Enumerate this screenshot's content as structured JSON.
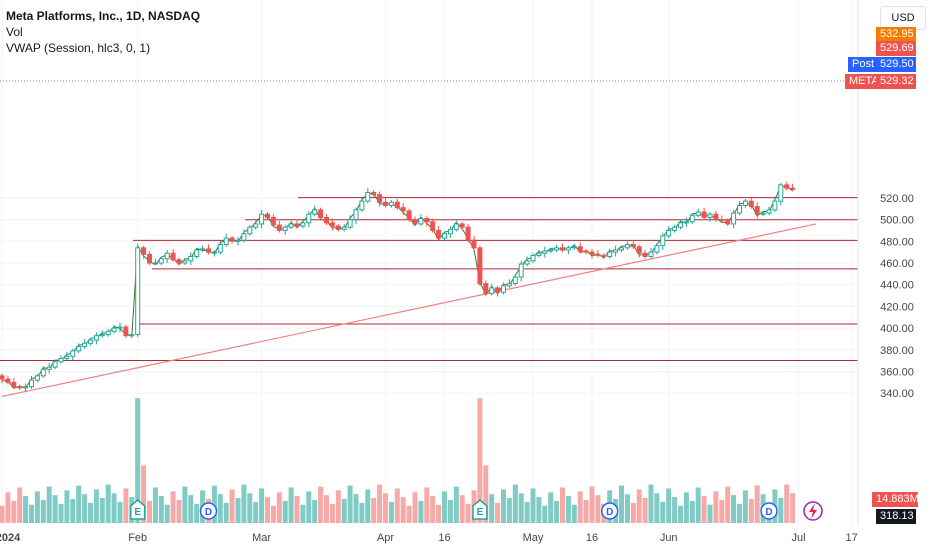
{
  "legend": {
    "title": "Meta Platforms, Inc., 1D, NASDAQ",
    "vol": "Vol",
    "vwap": "VWAP (Session, hlc3, 0, 1)"
  },
  "currency": "USD",
  "colors": {
    "up": "#26a69a",
    "down": "#ef5350",
    "level": "#b22833",
    "trend": "#f08080",
    "vol_up": "#80cbc4",
    "vol_down": "#f7a9a7",
    "vwap": "#ff9800"
  },
  "price_tags": {
    "top_partial": "532.95",
    "high": "529.69",
    "post_label": "Post",
    "post": "529.50",
    "meta_label": "META",
    "meta": "529.32",
    "volume": "14.883M",
    "bottom": "318.13"
  },
  "chart_data": {
    "type": "candlestick",
    "title": "Meta Platforms, Inc., 1D, NASDAQ",
    "y_ticks": [
      340,
      360,
      380,
      400,
      420,
      440,
      460,
      480,
      500,
      520
    ],
    "x_ticks": [
      "2024",
      "Feb",
      "Mar",
      "Apr",
      "16",
      "May",
      "16",
      "Jun",
      "Jul",
      "17"
    ],
    "horizontal_levels": [
      520.3,
      499.89,
      480.89,
      454.59,
      403.78,
      370.14
    ],
    "horizontal_level_labels": [
      "520.30",
      "499.89",
      "480.89",
      "454.59",
      "403.78",
      "370.14"
    ],
    "trendline": [
      [
        0,
        337
      ],
      [
        138,
        496
      ]
    ],
    "event_markers": [
      {
        "label": "E",
        "day": 23
      },
      {
        "label": "D",
        "day": 35
      },
      {
        "label": "E",
        "day": 81
      },
      {
        "label": "D",
        "day": 103
      },
      {
        "label": "D",
        "day": 130
      }
    ],
    "closes": [
      353,
      350,
      346,
      345,
      346,
      352,
      356,
      362,
      364,
      369,
      372,
      374,
      379,
      383,
      386,
      389,
      393,
      394,
      397,
      400,
      401,
      393,
      394,
      474,
      468,
      460,
      460,
      464,
      469,
      463,
      460,
      462,
      466,
      472,
      473,
      470,
      470,
      477,
      483,
      480,
      481,
      487,
      493,
      496,
      505,
      502,
      495,
      490,
      493,
      496,
      494,
      497,
      505,
      509,
      502,
      497,
      494,
      491,
      493,
      500,
      509,
      517,
      525,
      523,
      516,
      513,
      516,
      511,
      508,
      500,
      496,
      501,
      498,
      490,
      483,
      487,
      491,
      496,
      493,
      481,
      474,
      441,
      432,
      437,
      433,
      439,
      441,
      447,
      459,
      462,
      467,
      469,
      471,
      472,
      474,
      472,
      474,
      475,
      471,
      470,
      468,
      467,
      466,
      470,
      472,
      474,
      477,
      475,
      469,
      466,
      470,
      476,
      485,
      490,
      493,
      497,
      498,
      504,
      507,
      502,
      505,
      500,
      499,
      496,
      506,
      513,
      517,
      512,
      505,
      506,
      509,
      517,
      532,
      529,
      528
    ]
  }
}
